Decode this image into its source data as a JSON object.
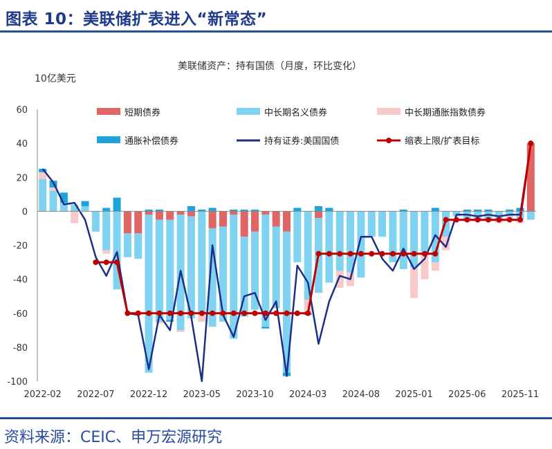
{
  "page": {
    "title": "图表 10：美联储扩表进入“新常态”",
    "source": "资料来源：CEIC、申万宏源研究"
  },
  "colors": {
    "short_term": "#e06666",
    "mid_long_nominal": "#7fd3f0",
    "tips_inflation": "#f7c9c9",
    "tips_comp": "#1fa3dc",
    "holdings_line": "#1a2e8a",
    "cap_line": "#c00000",
    "title_blue": "#1f3a8a"
  },
  "chart_data": {
    "type": "bar",
    "title": "美联储资产：持有国债（月度，环比变化）",
    "ylabel": "10亿美元",
    "xlabel": "",
    "ylim": [
      -100,
      60
    ],
    "yticks": [
      60,
      40,
      20,
      0,
      -20,
      -40,
      -60,
      -80,
      -100
    ],
    "stacked": true,
    "grid": false,
    "legend_position": "top",
    "categories": [
      "2022-02",
      "2022-03",
      "2022-04",
      "2022-05",
      "2022-06",
      "2022-07",
      "2022-08",
      "2022-09",
      "2022-10",
      "2022-11",
      "2022-12",
      "2023-01",
      "2023-02",
      "2023-03",
      "2023-04",
      "2023-05",
      "2023-06",
      "2023-07",
      "2023-08",
      "2023-09",
      "2023-10",
      "2023-11",
      "2023-12",
      "2024-01",
      "2024-02",
      "2024-03",
      "2024-04",
      "2024-05",
      "2024-06",
      "2024-07",
      "2024-08",
      "2024-09",
      "2024-10",
      "2024-11",
      "2024-12",
      "2025-01",
      "2025-02",
      "2025-03",
      "2025-04",
      "2025-05",
      "2025-06",
      "2025-07",
      "2025-08",
      "2025-09",
      "2025-10",
      "2025-11",
      "2025-12"
    ],
    "xtick_labels": [
      "2022-02",
      "2022-07",
      "2022-12",
      "2023-05",
      "2023-10",
      "2024-03",
      "2024-08",
      "2025-01",
      "2025-06",
      "2025-11"
    ],
    "series": [
      {
        "name": "短期债券",
        "kind": "bar",
        "color_key": "short_term",
        "values": [
          0,
          0,
          0,
          0,
          0,
          0,
          0,
          0,
          -13,
          -13,
          -2,
          -5,
          -5,
          -2,
          -3,
          0,
          -10,
          -9,
          -2,
          -15,
          -12,
          -2,
          -9,
          -12,
          0,
          0,
          -4,
          0,
          0,
          0,
          0,
          0,
          0,
          0,
          0,
          0,
          0,
          0,
          0,
          0,
          0,
          0,
          0,
          0,
          0,
          0,
          40
        ]
      },
      {
        "name": "中长期名义债券",
        "kind": "bar",
        "color_key": "mid_long_nominal",
        "values": [
          19,
          12,
          5,
          4,
          3,
          -12,
          -23,
          -46,
          -14,
          -15,
          -93,
          -60,
          -59,
          -68,
          -60,
          -60,
          -58,
          -56,
          -73,
          -47,
          -46,
          -66,
          -48,
          -83,
          -30,
          -52,
          -44,
          -42,
          -35,
          -36,
          -39,
          -15,
          -15,
          -30,
          -34,
          -33,
          -24,
          -30,
          -15,
          -3,
          -5,
          -5,
          -5,
          -5,
          -3,
          -5,
          -5
        ]
      },
      {
        "name": "中长期通胀指数债券",
        "kind": "bar",
        "color_key": "tips_inflation",
        "values": [
          4,
          2,
          0,
          -7,
          0,
          0,
          -2,
          0,
          0,
          0,
          0,
          -1,
          0,
          -1,
          0,
          -5,
          0,
          0,
          0,
          0,
          0,
          0,
          0,
          0,
          0,
          -8,
          0,
          0,
          -10,
          -8,
          0,
          0,
          0,
          0,
          0,
          -18,
          -16,
          -5,
          -8,
          0,
          -1,
          -1,
          -1,
          -2,
          -2,
          -2,
          0
        ]
      },
      {
        "name": "通胀补偿债券",
        "kind": "bar",
        "color_key": "tips_comp",
        "values": [
          2,
          4,
          6,
          0,
          3,
          0,
          2,
          8,
          0,
          0,
          1,
          1,
          -1,
          0,
          3,
          1,
          2,
          0,
          1,
          1,
          1,
          -1,
          0,
          -2,
          2,
          -1,
          3,
          2,
          0,
          0,
          0,
          0,
          0,
          0,
          1,
          0,
          0,
          2,
          0,
          0,
          1,
          1,
          1,
          0,
          1,
          2,
          0
        ]
      },
      {
        "name": "持有证券:美国国债",
        "kind": "line",
        "color_key": "holdings_line",
        "values": [
          25,
          17,
          4,
          5,
          -5,
          -27,
          -38,
          -24,
          -60,
          -61,
          -93,
          -61,
          -70,
          -35,
          -62,
          -100,
          -20,
          -61,
          -74,
          -50,
          -48,
          -64,
          -53,
          -97,
          -32,
          -42,
          -78,
          -53,
          -38,
          -40,
          -15,
          -15,
          -28,
          -35,
          -22,
          -34,
          -28,
          -14,
          -21,
          -2,
          -2,
          -3,
          -2,
          -3,
          -2,
          -2,
          40
        ]
      },
      {
        "name": "缩表上限/扩表目标",
        "kind": "line",
        "color_key": "cap_line",
        "markers": true,
        "values": [
          null,
          null,
          null,
          null,
          null,
          -30,
          -30,
          -30,
          -60,
          -60,
          -60,
          -60,
          -60,
          -60,
          -60,
          -60,
          -60,
          -60,
          -60,
          -60,
          -60,
          -60,
          -60,
          -60,
          -60,
          -60,
          -25,
          -25,
          -25,
          -25,
          -25,
          -25,
          -25,
          -25,
          -25,
          -25,
          -25,
          -25,
          -5,
          -5,
          -5,
          -5,
          -5,
          -5,
          -5,
          -5,
          40
        ]
      }
    ]
  }
}
